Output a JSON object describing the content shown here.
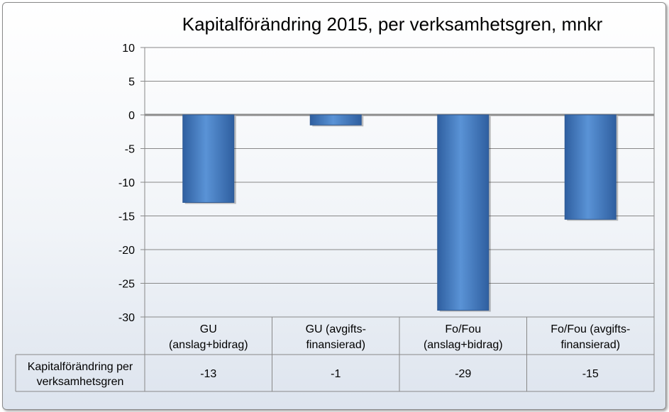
{
  "chart_data": {
    "type": "bar",
    "title": "Kapitalförändring 2015, per verksamhetsgren, mnkr",
    "categories": [
      [
        "GU",
        "(anslag+bidrag)"
      ],
      [
        "GU (avgifts-",
        "finansierad)"
      ],
      [
        "Fo/Fou",
        "(anslag+bidrag)"
      ],
      [
        "Fo/Fou (avgifts-",
        "finansierad)"
      ]
    ],
    "series": [
      {
        "name": "Kapitalförändring per verksamhetsgren",
        "name_lines": [
          "Kapitalförändring per",
          "verksamhetsgren"
        ],
        "values": [
          -13,
          -1.5,
          -29,
          -15.5
        ],
        "table_values": [
          "-13",
          "-1",
          "-29",
          "-15"
        ]
      }
    ],
    "ylim": [
      -30,
      10
    ],
    "yticks": [
      10,
      5,
      0,
      -5,
      -10,
      -15,
      -20,
      -25,
      -30
    ],
    "grid": true,
    "legend": "data-table",
    "colors": {
      "bar": "#4a7ebf",
      "bar_edge": "#2f5a94",
      "grid": "#888888",
      "zero_line": "#8c8c8c"
    }
  }
}
